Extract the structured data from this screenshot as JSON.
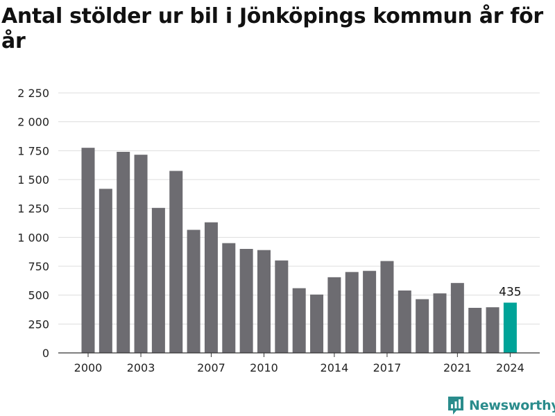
{
  "title": "Antal stölder ur bil i Jönköpings kommun år för år",
  "brand": {
    "name": "Newsworthy",
    "icon": "newsworthy-logo-icon",
    "color": "#2a8c8c"
  },
  "colors": {
    "bar": "#6d6c71",
    "highlight": "#00a398",
    "grid": "#dddddd",
    "axis": "#333333"
  },
  "chart_data": {
    "type": "bar",
    "title": "Antal stölder ur bil i Jönköpings kommun år för år",
    "xlabel": "",
    "ylabel": "",
    "categories": [
      "2000",
      "2001",
      "2002",
      "2003",
      "2004",
      "2005",
      "2006",
      "2007",
      "2008",
      "2009",
      "2010",
      "2011",
      "2012",
      "2013",
      "2014",
      "2015",
      "2016",
      "2017",
      "2018",
      "2019",
      "2020",
      "2021",
      "2022",
      "2023",
      "2024"
    ],
    "values": [
      1775,
      1420,
      1740,
      1715,
      1255,
      1575,
      1065,
      1130,
      950,
      900,
      890,
      800,
      560,
      505,
      655,
      700,
      710,
      795,
      540,
      465,
      515,
      605,
      390,
      395,
      435
    ],
    "x_tick_labels": [
      "2000",
      "2003",
      "2007",
      "2010",
      "2014",
      "2017",
      "2021",
      "2024"
    ],
    "y_ticks": [
      0,
      250,
      500,
      750,
      1000,
      1250,
      1500,
      1750,
      2000,
      2250
    ],
    "y_tick_labels": [
      "0",
      "250",
      "500",
      "750",
      "1 000",
      "1 250",
      "1 500",
      "1 750",
      "2 000",
      "2 250"
    ],
    "ylim": [
      0,
      2250
    ],
    "grid": true,
    "highlight": {
      "category": "2024",
      "label": "435"
    }
  }
}
